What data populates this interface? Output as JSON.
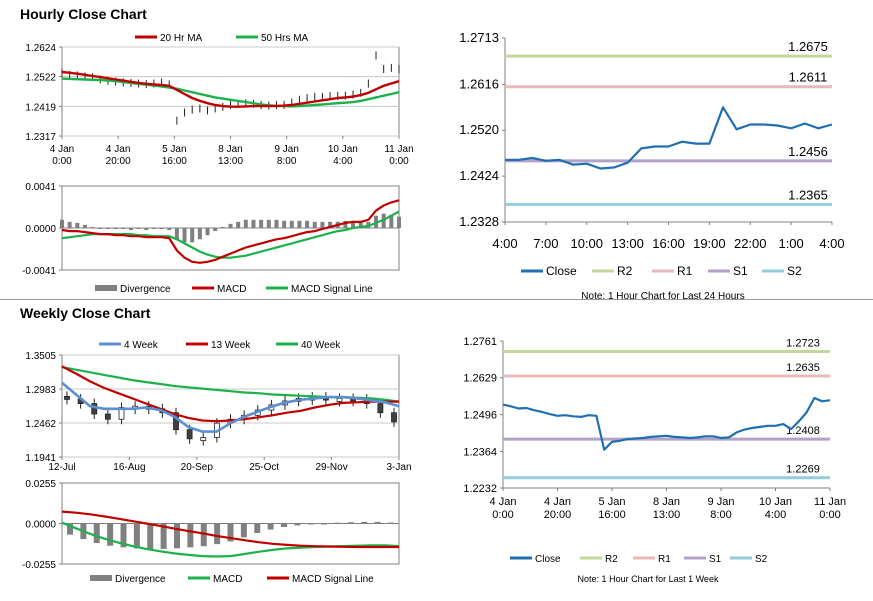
{
  "hourly": {
    "title": "Hourly Close Chart",
    "price_panel": {
      "type": "line",
      "legend": [
        "20 Hr MA",
        "50 Hrs MA"
      ],
      "y_ticks": [
        "1.2624",
        "1.2522",
        "1.2419",
        "1.2317"
      ],
      "ylim": [
        1.2317,
        1.2624
      ],
      "x_ticks": [
        [
          "4 Jan",
          "0:00"
        ],
        [
          "4 Jan",
          "20:00"
        ],
        [
          "5 Jan",
          "16:00"
        ],
        [
          "8 Jan",
          "13:00"
        ],
        [
          "9 Jan",
          "8:00"
        ],
        [
          "10 Jan",
          "4:00"
        ],
        [
          "11 Jan",
          "0:00"
        ]
      ],
      "series": [
        {
          "name": "Close",
          "values": [
            1.2534,
            1.2528,
            1.2526,
            1.2522,
            1.252,
            1.2512,
            1.2508,
            1.2505,
            1.2502,
            1.25,
            1.2498,
            1.2496,
            1.2498,
            1.2502,
            1.2495,
            1.237,
            1.2398,
            1.2408,
            1.2412,
            1.2405,
            1.2412,
            1.2418,
            1.2424,
            1.2428,
            1.243,
            1.2428,
            1.2424,
            1.2422,
            1.2424,
            1.2424,
            1.2432,
            1.2442,
            1.2448,
            1.2452,
            1.2452,
            1.2455,
            1.2455,
            1.2456,
            1.246,
            1.2466,
            1.2498,
            1.2595,
            1.2548,
            1.2552,
            1.2548
          ]
        },
        {
          "name": "20 Hr MA",
          "values": [
            1.2538,
            1.2535,
            1.2532,
            1.2528,
            1.2524,
            1.252,
            1.2516,
            1.2512,
            1.2508,
            1.2504,
            1.25,
            1.2497,
            1.2495,
            1.2493,
            1.249,
            1.2476,
            1.2462,
            1.2448,
            1.2438,
            1.243,
            1.2424,
            1.242,
            1.2418,
            1.2418,
            1.2419,
            1.242,
            1.242,
            1.242,
            1.2421,
            1.2422,
            1.2424,
            1.2428,
            1.2432,
            1.2436,
            1.244,
            1.2444,
            1.2448,
            1.245,
            1.2453,
            1.2458,
            1.2466,
            1.2478,
            1.249,
            1.2498,
            1.2506
          ]
        },
        {
          "name": "50 Hrs MA",
          "values": [
            1.2515,
            1.2514,
            1.2513,
            1.2512,
            1.2511,
            1.251,
            1.2508,
            1.2506,
            1.2503,
            1.25,
            1.2497,
            1.2494,
            1.2491,
            1.2488,
            1.2484,
            1.248,
            1.2474,
            1.2468,
            1.2462,
            1.2456,
            1.245,
            1.2446,
            1.2442,
            1.2438,
            1.2434,
            1.243,
            1.2426,
            1.2423,
            1.2421,
            1.242,
            1.2419,
            1.242,
            1.2422,
            1.2424,
            1.2426,
            1.2428,
            1.243,
            1.2432,
            1.2434,
            1.2438,
            1.2444,
            1.245,
            1.2456,
            1.2462,
            1.2468
          ]
        }
      ]
    },
    "macd_panel": {
      "type": "line",
      "legend": [
        "Divergence",
        "MACD",
        "MACD Signal Line"
      ],
      "y_ticks": [
        "0.0041",
        "0.0000",
        "-0.0041"
      ],
      "ylim": [
        -0.0041,
        0.0041
      ],
      "macd": [
        -0.0002,
        -0.0003,
        -0.0003,
        -0.0004,
        -0.0005,
        -0.0006,
        -0.0006,
        -0.0007,
        -0.0007,
        -0.0008,
        -0.0008,
        -0.0009,
        -0.0009,
        -0.0009,
        -0.001,
        -0.0022,
        -0.0029,
        -0.0033,
        -0.0034,
        -0.0033,
        -0.0031,
        -0.0028,
        -0.0025,
        -0.0022,
        -0.0019,
        -0.0017,
        -0.0015,
        -0.0013,
        -0.0011,
        -0.001,
        -0.0008,
        -0.0006,
        -0.0004,
        -0.0003,
        -0.0001,
        0.0001,
        0.0003,
        0.0005,
        0.0006,
        0.0006,
        0.0008,
        0.0017,
        0.0022,
        0.0025,
        0.0027
      ],
      "signal": [
        -0.001,
        -0.0009,
        -0.0008,
        -0.0007,
        -0.0006,
        -0.0006,
        -0.0006,
        -0.0006,
        -0.0006,
        -0.0006,
        -0.0007,
        -0.0007,
        -0.0008,
        -0.0008,
        -0.0008,
        -0.0011,
        -0.0015,
        -0.0019,
        -0.0023,
        -0.0026,
        -0.0028,
        -0.0029,
        -0.0029,
        -0.0028,
        -0.0027,
        -0.0025,
        -0.0023,
        -0.0021,
        -0.0019,
        -0.0017,
        -0.0015,
        -0.0013,
        -0.0011,
        -0.0009,
        -0.0007,
        -0.0005,
        -0.0003,
        -0.0002,
        0.0,
        0.0001,
        0.0002,
        0.0005,
        0.0008,
        0.0012,
        0.0016
      ]
    }
  },
  "hourly_pivot": {
    "type": "line",
    "y_ticks": [
      "1.2713",
      "1.2616",
      "1.2520",
      "1.2424",
      "1.2328"
    ],
    "ylim": [
      1.2328,
      1.2713
    ],
    "x_ticks": [
      "4:00",
      "7:00",
      "10:00",
      "13:00",
      "16:00",
      "19:00",
      "22:00",
      "1:00",
      "4:00"
    ],
    "levels": [
      {
        "name": "R2",
        "value": 1.2675,
        "label": "1.2675"
      },
      {
        "name": "R1",
        "value": 1.2611,
        "label": "1.2611"
      },
      {
        "name": "S1",
        "value": 1.2456,
        "label": "1.2456"
      },
      {
        "name": "S2",
        "value": 1.2365,
        "label": "1.2365"
      }
    ],
    "close": [
      1.2458,
      1.2458,
      1.2462,
      1.2456,
      1.2458,
      1.2448,
      1.245,
      1.244,
      1.2442,
      1.2452,
      1.2482,
      1.2486,
      1.2486,
      1.2496,
      1.2492,
      1.2492,
      1.2568,
      1.2522,
      1.2532,
      1.2532,
      1.253,
      1.2524,
      1.2534,
      1.2524,
      1.2532
    ],
    "legend": [
      "Close",
      "R2",
      "R1",
      "S1",
      "S2"
    ],
    "note": "Note: 1 Hour Chart for Last 24 Hours"
  },
  "weekly": {
    "title": "Weekly Close Chart",
    "price_panel": {
      "type": "line",
      "legend": [
        "4 Week",
        "13 Week",
        "40 Week"
      ],
      "y_ticks": [
        "1.3505",
        "1.2983",
        "1.2462",
        "1.1941"
      ],
      "ylim": [
        1.1941,
        1.3505
      ],
      "x_ticks": [
        "12-Jul",
        "16-Aug",
        "20-Sep",
        "25-Oct",
        "29-Nov",
        "3-Jan"
      ],
      "series": [
        {
          "name": "Close",
          "values": [
            1.283,
            1.276,
            1.26,
            1.252,
            1.27,
            1.272,
            1.268,
            1.262,
            1.236,
            1.222,
            1.224,
            1.246,
            1.252,
            1.258,
            1.266,
            1.274,
            1.28,
            1.284,
            1.286,
            1.282,
            1.284,
            1.283,
            1.276,
            1.262,
            1.248
          ]
        },
        {
          "name": "4 Week",
          "values": [
            1.308,
            1.29,
            1.272,
            1.268,
            1.268,
            1.268,
            1.27,
            1.266,
            1.256,
            1.24,
            1.233,
            1.233,
            1.246,
            1.256,
            1.264,
            1.272,
            1.278,
            1.282,
            1.284,
            1.286,
            1.286,
            1.284,
            1.281,
            1.278,
            1.272
          ]
        },
        {
          "name": "13 Week",
          "values": [
            1.333,
            1.322,
            1.31,
            1.3,
            1.292,
            1.284,
            1.276,
            1.268,
            1.26,
            1.254,
            1.25,
            1.249,
            1.25,
            1.252,
            1.255,
            1.258,
            1.262,
            1.265,
            1.27,
            1.274,
            1.277,
            1.278,
            1.279,
            1.279,
            1.279
          ]
        },
        {
          "name": "40 Week",
          "values": [
            1.332,
            1.328,
            1.324,
            1.32,
            1.316,
            1.312,
            1.309,
            1.306,
            1.303,
            1.301,
            1.299,
            1.297,
            1.295,
            1.293,
            1.292,
            1.29,
            1.289,
            1.288,
            1.287,
            1.286,
            1.286,
            1.285,
            1.284,
            1.282,
            1.279
          ]
        }
      ]
    },
    "macd_panel": {
      "type": "line",
      "legend": [
        "Divergence",
        "MACD",
        "MACD Signal Line"
      ],
      "y_ticks": [
        "0.0255",
        "0.0000",
        "-0.0255"
      ],
      "ylim": [
        -0.0255,
        0.0255
      ],
      "macd": [
        0.0005,
        -0.003,
        -0.0065,
        -0.0095,
        -0.012,
        -0.0142,
        -0.016,
        -0.0175,
        -0.0188,
        -0.0198,
        -0.0205,
        -0.0208,
        -0.0205,
        -0.0192,
        -0.0178,
        -0.0166,
        -0.0157,
        -0.0152,
        -0.0148,
        -0.0145,
        -0.0142,
        -0.014,
        -0.0138,
        -0.0138,
        -0.0142
      ],
      "signal": [
        0.0075,
        0.0068,
        0.0058,
        0.0045,
        0.003,
        0.0015,
        0.0,
        -0.0015,
        -0.0032,
        -0.0048,
        -0.0062,
        -0.0078,
        -0.0092,
        -0.0105,
        -0.0118,
        -0.0128,
        -0.0135,
        -0.014,
        -0.0143,
        -0.0145,
        -0.0147,
        -0.0148,
        -0.0148,
        -0.0148,
        -0.0148
      ]
    }
  },
  "weekly_pivot": {
    "type": "line",
    "y_ticks": [
      "1.2761",
      "1.2629",
      "1.2496",
      "1.2364",
      "1.2232"
    ],
    "ylim": [
      1.2232,
      1.2761
    ],
    "x_ticks": [
      [
        "4 Jan",
        "0:00"
      ],
      [
        "4 Jan",
        "20:00"
      ],
      [
        "5 Jan",
        "16:00"
      ],
      [
        "8 Jan",
        "13:00"
      ],
      [
        "9 Jan",
        "8:00"
      ],
      [
        "10 Jan",
        "4:00"
      ],
      [
        "11 Jan",
        "0:00"
      ]
    ],
    "levels": [
      {
        "name": "R2",
        "value": 1.2723,
        "label": "1.2723"
      },
      {
        "name": "R1",
        "value": 1.2635,
        "label": "1.2635"
      },
      {
        "name": "S1",
        "value": 1.2408,
        "label": "1.2408"
      },
      {
        "name": "S2",
        "value": 1.2269,
        "label": "1.2269"
      }
    ],
    "close": [
      1.2532,
      1.2526,
      1.2518,
      1.252,
      1.2512,
      1.2506,
      1.2498,
      1.2492,
      1.2494,
      1.249,
      1.2488,
      1.2494,
      1.2492,
      1.237,
      1.2398,
      1.2402,
      1.2408,
      1.241,
      1.2412,
      1.2416,
      1.2418,
      1.242,
      1.2416,
      1.2414,
      1.2412,
      1.2414,
      1.2418,
      1.2418,
      1.2412,
      1.2414,
      1.2432,
      1.2442,
      1.2448,
      1.2452,
      1.2456,
      1.2456,
      1.2462,
      1.2444,
      1.2472,
      1.2504,
      1.2556,
      1.2544,
      1.2548
    ],
    "legend": [
      "Close",
      "R2",
      "R1",
      "S1",
      "S2"
    ],
    "note": "Note: 1 Hour Chart for Last 1 Week"
  },
  "colors": {
    "close": "#1f6fb2",
    "ma_red": "#c00000",
    "ma_green": "#1db14b",
    "ma_blue": "#5b8fd1",
    "divergence": "#808080",
    "r2": "#c4d79b",
    "r1": "#e6b9b8",
    "s1": "#b3a2c7",
    "s2": "#93cddd",
    "candle_dark": "#404040"
  }
}
